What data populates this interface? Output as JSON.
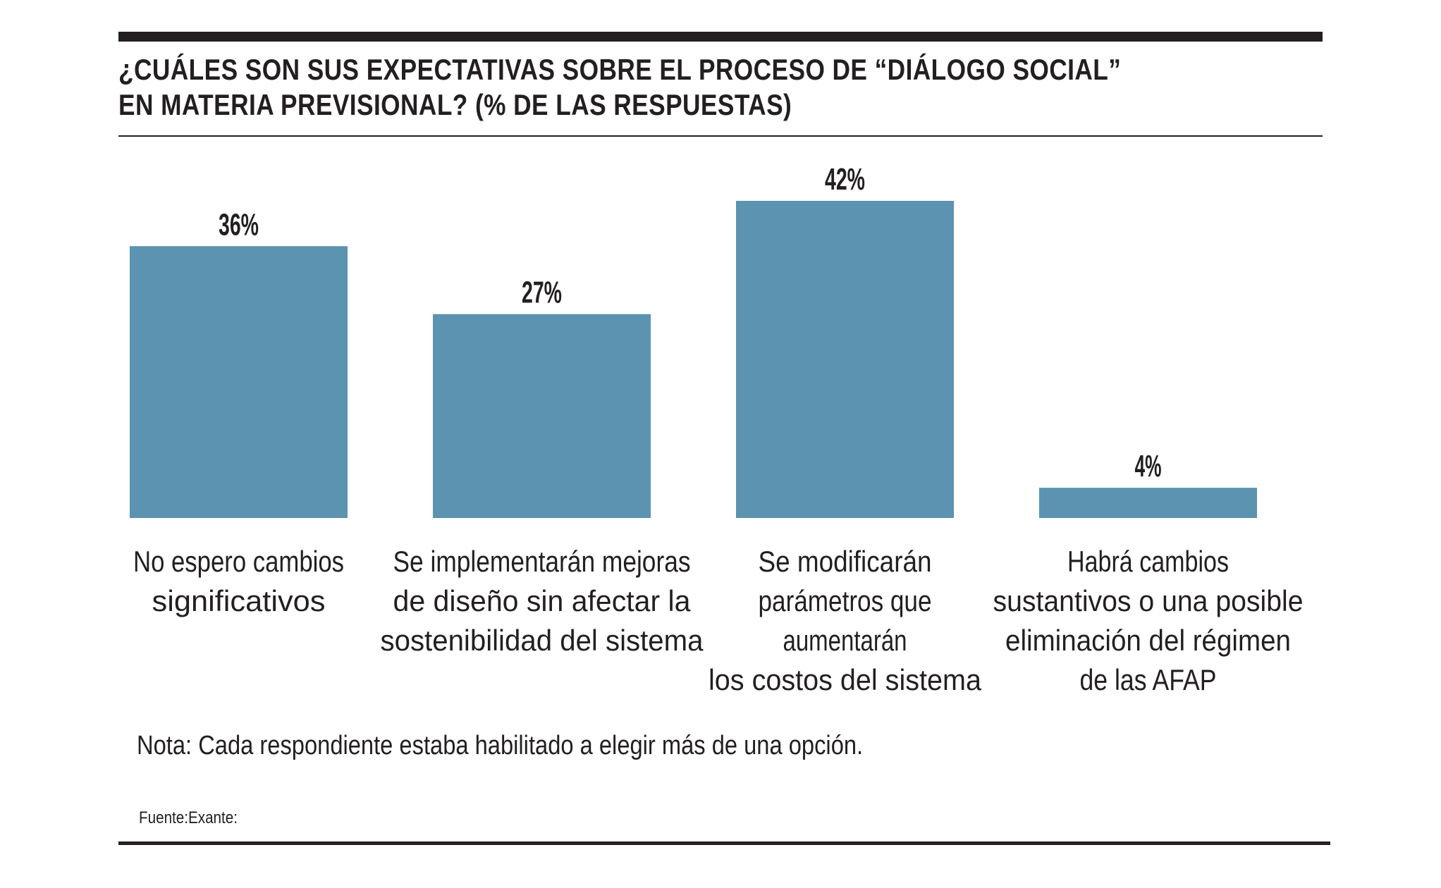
{
  "header": {
    "title_lines": [
      "¿CUÁLES SON SUS EXPECTATIVAS SOBRE EL PROCESO DE “DIÁLOGO SOCIAL”",
      "EN MATERIA PREVISIONAL? (% DE LAS RESPUESTAS)"
    ]
  },
  "colors": {
    "bar": "#5b93b0",
    "text": "#231f20",
    "rule": "#231f20"
  },
  "chart_data": {
    "type": "bar",
    "title": "¿CUÁLES SON SUS EXPECTATIVAS SOBRE EL PROCESO DE “DIÁLOGO SOCIAL” EN MATERIA PREVISIONAL? (% DE LAS RESPUESTAS)",
    "categories": [
      [
        "No espero cambios",
        "significativos"
      ],
      [
        "Se implementarán mejoras",
        "de diseño sin afectar la",
        "sostenibilidad del sistema"
      ],
      [
        "Se modificarán",
        "parámetros que",
        "aumentarán",
        "los costos del sistema"
      ],
      [
        "Habrá cambios",
        "sustantivos o una posible",
        "eliminación del régimen",
        "de las AFAP"
      ]
    ],
    "values": [
      36,
      27,
      42,
      4
    ],
    "value_labels": [
      "36%",
      "27%",
      "42%",
      "4%"
    ],
    "unit": "%",
    "xlabel": "",
    "ylabel": "",
    "ylim": [
      0,
      42
    ],
    "grid": false,
    "legend": "none"
  },
  "footer": {
    "note": "Nota: Cada respondiente estaba habilitado a elegir más de una opción.",
    "source": "Fuente:Exante:"
  }
}
